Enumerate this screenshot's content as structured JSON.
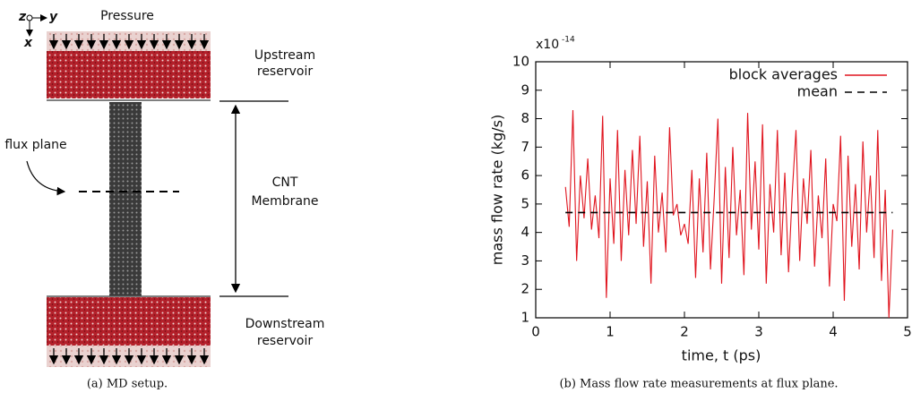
{
  "diagram": {
    "axis_z": "z",
    "axis_y": "y",
    "axis_x": "x",
    "pressure": "Pressure",
    "upstream": [
      "Upstream",
      "reservoir"
    ],
    "flux_plane": "flux plane",
    "cnt": [
      "CNT",
      "Membrane"
    ],
    "downstream": [
      "Downstream",
      "reservoir"
    ],
    "caption": "(a) MD setup."
  },
  "chart_data": {
    "type": "line",
    "caption": "(b) Mass flow rate measurements at flux plane.",
    "scale_label": "x10",
    "scale_exponent": "-14",
    "x_label": "time, t (ps)",
    "y_label": "mass flow rate (kg/s)",
    "xlim": [
      0,
      5
    ],
    "ylim": [
      1,
      10
    ],
    "xticks": [
      0,
      1,
      2,
      3,
      4,
      5
    ],
    "yticks": [
      1,
      2,
      3,
      4,
      5,
      6,
      7,
      8,
      9,
      10
    ],
    "legend": "upper right",
    "series": [
      {
        "name": "block averages",
        "color": "#e0141e",
        "style": "solid",
        "x": [
          0.4,
          0.45,
          0.5,
          0.55,
          0.6,
          0.65,
          0.7,
          0.75,
          0.8,
          0.85,
          0.9,
          0.95,
          1.0,
          1.05,
          1.1,
          1.15,
          1.2,
          1.25,
          1.3,
          1.35,
          1.4,
          1.45,
          1.5,
          1.55,
          1.6,
          1.65,
          1.7,
          1.75,
          1.8,
          1.85,
          1.9,
          1.95,
          2.0,
          2.05,
          2.1,
          2.15,
          2.2,
          2.25,
          2.3,
          2.35,
          2.4,
          2.45,
          2.5,
          2.55,
          2.6,
          2.65,
          2.7,
          2.75,
          2.8,
          2.85,
          2.9,
          2.95,
          3.0,
          3.05,
          3.1,
          3.15,
          3.2,
          3.25,
          3.3,
          3.35,
          3.4,
          3.45,
          3.5,
          3.55,
          3.6,
          3.65,
          3.7,
          3.75,
          3.8,
          3.85,
          3.9,
          3.95,
          4.0,
          4.05,
          4.1,
          4.15,
          4.2,
          4.25,
          4.3,
          4.35,
          4.4,
          4.45,
          4.5,
          4.55,
          4.6,
          4.65,
          4.7,
          4.75,
          4.8
        ],
        "values": [
          5.6,
          4.2,
          8.3,
          3.0,
          6.0,
          4.5,
          6.6,
          4.1,
          5.3,
          3.8,
          8.1,
          1.7,
          5.9,
          3.6,
          7.6,
          3.0,
          6.2,
          3.9,
          6.9,
          4.3,
          7.4,
          3.5,
          5.8,
          2.2,
          6.7,
          4.0,
          5.4,
          3.3,
          7.7,
          4.6,
          5.0,
          3.9,
          4.3,
          3.6,
          6.2,
          2.4,
          5.9,
          3.3,
          6.8,
          2.7,
          5.2,
          8.0,
          2.2,
          6.3,
          3.1,
          7.0,
          3.9,
          5.5,
          2.5,
          8.2,
          4.1,
          6.5,
          3.4,
          7.8,
          2.2,
          5.7,
          4.0,
          7.6,
          3.2,
          6.1,
          2.6,
          5.4,
          7.6,
          3.0,
          5.9,
          4.3,
          6.9,
          2.8,
          5.3,
          3.8,
          6.6,
          2.1,
          5.0,
          4.4,
          7.4,
          1.6,
          6.7,
          3.5,
          5.7,
          2.7,
          7.2,
          4.0,
          6.0,
          3.1,
          7.6,
          2.3,
          5.5,
          1.0,
          4.1
        ]
      },
      {
        "name": "mean",
        "color": "#000000",
        "style": "dashed",
        "x": [
          0.4,
          4.8
        ],
        "values": [
          4.7,
          4.7
        ]
      }
    ]
  }
}
